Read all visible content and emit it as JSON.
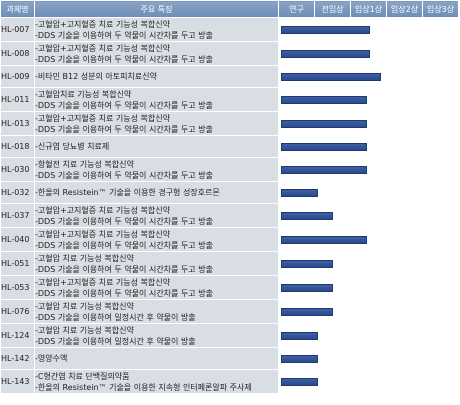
{
  "header": {
    "code": "과제명",
    "feature": "주요 특징",
    "phases": [
      "연구",
      "전임상",
      "임상1상",
      "임상2상",
      "임상3상"
    ]
  },
  "phase_count": 5,
  "rows": [
    {
      "code": "HL-007",
      "lines": [
        "-고혈압+고지혈증 치료 기능성 복합신약",
        "-DDS 기술을 이용하여 두 약물이 시간차를 두고 방출"
      ],
      "progress": 2.55
    },
    {
      "code": "HL-008",
      "lines": [
        "-고혈압+고지혈증 치료 기능성 복합신약",
        "-DDS 기술을 이용하여 두 약물이 시간차를 두고 방출"
      ],
      "progress": 2.55
    },
    {
      "code": "HL-009",
      "lines": [
        "-비타민 B12 성분의 아토피치료신약"
      ],
      "progress": 2.85
    },
    {
      "code": "HL-011",
      "lines": [
        "-고혈압치료 기능성 복합신약",
        "-DDS 기술을 이용하여 두 약물이 시간차를 두고 방출"
      ],
      "progress": 2.45
    },
    {
      "code": "HL-013",
      "lines": [
        "-고혈압+고지혈증 치료 기능성 복합신약",
        "-DDS 기술을 이용하여 두 약물이 시간차를 두고 방출"
      ],
      "progress": 2.45
    },
    {
      "code": "HL-018",
      "lines": [
        "-신규염 당뇨병 치료제"
      ],
      "progress": 2.45
    },
    {
      "code": "HL-030",
      "lines": [
        "-항혈전 치료 기능성 복합신약",
        "-DDS 기술을 이용하여 두 약물이 시간차를 두고 방출"
      ],
      "progress": 2.45
    },
    {
      "code": "HL-032",
      "lines": [
        "-한올의 Resistein™ 기술을 이용한 경구형 성장호르몬"
      ],
      "progress": 1.1
    },
    {
      "code": "HL-037",
      "lines": [
        "-고혈압+고지혈증 치료 기능성 복합신약",
        "-DDS 기술을 이용하여 두 약물이 시간차를 두고 방출"
      ],
      "progress": 1.5
    },
    {
      "code": "HL-040",
      "lines": [
        "-고혈압+고지혈증 치료 기능성 복합신약",
        "-DDS 기술을 이용하여 두 약물이 시간차를 두고 방출"
      ],
      "progress": 2.45
    },
    {
      "code": "HL-051",
      "lines": [
        "-고혈압 치료 기능성 복합신약",
        "-DDS 기술을 이용하여 두 약물이 시간차를 두고 방출"
      ],
      "progress": 1.5
    },
    {
      "code": "HL-053",
      "lines": [
        "-고혈압+고지혈증 치료 기능성 복합신약",
        "-DDS 기술을 이용하여 두 약물이 시간차를 두고 방출"
      ],
      "progress": 1.5
    },
    {
      "code": "HL-076",
      "lines": [
        "-고혈압 치료 기능성 복합신약",
        "-DDS 기술을 이용하여 일정시간 후 약물이 방출"
      ],
      "progress": 1.5
    },
    {
      "code": "HL-124",
      "lines": [
        "-고혈압 치료 기능성 복합신약",
        "-DDS 기술을 이용하여 일정시간 후 약물이 방출"
      ],
      "progress": 1.1
    },
    {
      "code": "HL-142",
      "lines": [
        "-영양수액"
      ],
      "progress": 1.1
    },
    {
      "code": "HL-143",
      "lines": [
        "-C형간염 치료 단백질의약품",
        "-한올의 Resistein™ 기술을 이용한 지속형 인터페론알파 주사제"
      ],
      "progress": 1.1
    }
  ]
}
